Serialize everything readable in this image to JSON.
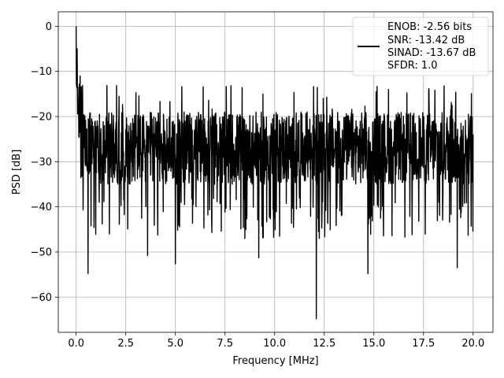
{
  "chart_data": {
    "type": "line",
    "title": "",
    "xlabel": "Frequency [MHz]",
    "ylabel": "PSD [dB]",
    "xlim": [
      -0.9,
      21.0
    ],
    "ylim": [
      -67.8,
      3.2
    ],
    "xticks": [
      0.0,
      2.5,
      5.0,
      7.5,
      10.0,
      12.5,
      15.0,
      17.5,
      20.0
    ],
    "xtick_labels": [
      "0.0",
      "2.5",
      "5.0",
      "7.5",
      "10.0",
      "12.5",
      "15.0",
      "17.5",
      "20.0"
    ],
    "yticks": [
      0,
      -10,
      -20,
      -30,
      -40,
      -50,
      -60
    ],
    "ytick_labels": [
      "0",
      "−10",
      "−20",
      "−30",
      "−40",
      "−50",
      "−60"
    ],
    "grid": true,
    "legend_position": "top-right",
    "series": [
      {
        "legend_lines": [
          "ENOB: -2.56 bits",
          "SNR: -13.42 dB",
          "SINAD: -13.67 dB",
          "SFDR: 1.0"
        ],
        "color": "#000000",
        "x_range": [
          0.0,
          20.0
        ],
        "baseline_db": -27,
        "fluctuation_db": [
          -35,
          -19
        ],
        "key_points": [
          {
            "x": 0.0,
            "y": 0.0
          },
          {
            "x": 0.02,
            "y": -13
          },
          {
            "x": 0.05,
            "y": -5
          },
          {
            "x": 0.1,
            "y": -17
          },
          {
            "x": 0.2,
            "y": -11
          },
          {
            "x": 0.6,
            "y": -54.8
          },
          {
            "x": 3.6,
            "y": -50.8
          },
          {
            "x": 5.0,
            "y": -52.6
          },
          {
            "x": 9.2,
            "y": -51.3
          },
          {
            "x": 12.1,
            "y": -64.8
          },
          {
            "x": 14.7,
            "y": -54.8
          },
          {
            "x": 19.2,
            "y": -53.5
          },
          {
            "x": 20.0,
            "y": -24
          }
        ]
      }
    ]
  }
}
